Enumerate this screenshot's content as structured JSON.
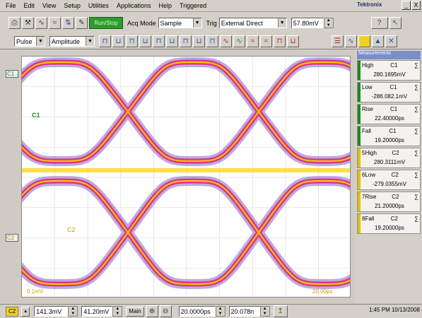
{
  "menubar": {
    "items": [
      "File",
      "Edit",
      "View",
      "Setup",
      "Utilities",
      "Applications",
      "Help",
      "Triggered"
    ],
    "brand": "Tektronix",
    "window_buttons": [
      "_",
      "X"
    ]
  },
  "toolbar1": {
    "run_stop_label": "Run/Stop",
    "acq_mode_label": "Acq Mode",
    "acq_mode_value": "Sample",
    "trig_label": "Trig",
    "trig_source_value": "External Direct",
    "trig_level_value": "57.80mV"
  },
  "toolbar2": {
    "meas_category_value": "Pulse",
    "meas_type_value": "Amplitude"
  },
  "display": {
    "c1_marker": "C1",
    "c2_marker": "C2",
    "c1_label": "C1",
    "c2_label": "C2",
    "c1_scale": "0.1mV",
    "c2_scale": "20.00ps",
    "c1_color": "#1a8a1a",
    "c2_color": "#c8a000",
    "eye_color_outer": "#7040c0",
    "eye_color_core": "#e02070",
    "eye_color_hot": "#ffd000"
  },
  "measurements": {
    "header": "Measurements",
    "items": [
      {
        "index": "",
        "name": "High",
        "channel": "C1",
        "value": "280.1695mV",
        "color": "#1a8a1a"
      },
      {
        "index": "",
        "name": "Low",
        "channel": "C1",
        "value": "-286.082.1mV",
        "color": "#1a8a1a"
      },
      {
        "index": "",
        "name": "Rise",
        "channel": "C1",
        "value": "22.40000ps",
        "color": "#1a8a1a"
      },
      {
        "index": "",
        "name": "Fall",
        "channel": "C1",
        "value": "19.20000ps",
        "color": "#1a8a1a"
      },
      {
        "index": "5",
        "name": "High",
        "channel": "C2",
        "value": "280.3111mV",
        "color": "#e0c000"
      },
      {
        "index": "6",
        "name": "Low",
        "channel": "C2",
        "value": "-279.0355mV",
        "color": "#e0c000"
      },
      {
        "index": "7",
        "name": "Rise",
        "channel": "C2",
        "value": "21.20000ps",
        "color": "#e0c000"
      },
      {
        "index": "8",
        "name": "Fall",
        "channel": "C2",
        "value": "19.20000ps",
        "color": "#e0c000"
      }
    ]
  },
  "bottombar": {
    "channel_select": "C2",
    "vert_scale_value": "141.3mV",
    "vert_offset_value": "41.20mV",
    "main_label": "Main",
    "horiz_scale_value": "20.0000ps",
    "horiz_pos_value": "20.078n",
    "clock": "1:45 PM 10/13/2008"
  }
}
